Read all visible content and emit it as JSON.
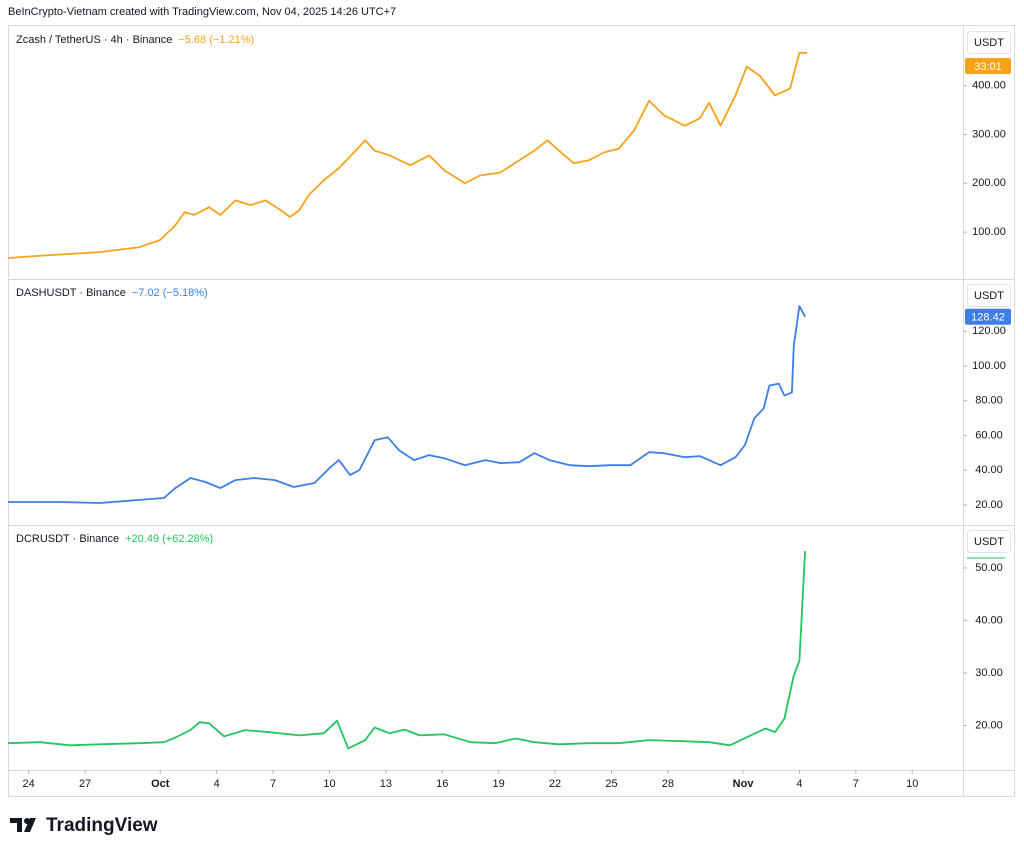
{
  "header": "BeInCrypto-Vietnam created with TradingView.com, Nov 04, 2025 14:26 UTC+7",
  "footer": "TradingView",
  "chart_data": [
    {
      "type": "line",
      "title": "Zcash / TetherUS · 4h · Binance",
      "change": "−5.68 (−1.21%)",
      "color": "#f7a21b",
      "axis_label": "USDT",
      "price_tag": "33:01",
      "x": [
        -1.1,
        1.1,
        3.8,
        5.9,
        7.0,
        7.8,
        8.3,
        8.8,
        9.6,
        10.2,
        11.0,
        11.8,
        12.6,
        13.4,
        13.9,
        14.4,
        14.9,
        15.7,
        16.5,
        17.3,
        17.9,
        18.4,
        19.2,
        20.3,
        21.3,
        22.1,
        23.2,
        24.0,
        25.1,
        26.1,
        26.9,
        27.6,
        28.2,
        29.0,
        29.8,
        30.6,
        31.4,
        32.2,
        33.0,
        33.8,
        34.9,
        35.7,
        36.2,
        36.8,
        37.6,
        38.2,
        38.9,
        39.7,
        40.5,
        41.0,
        41.4
      ],
      "values": [
        47,
        53,
        59,
        69,
        84,
        114,
        141,
        135,
        151,
        135,
        165,
        155,
        165,
        145,
        131,
        145,
        176,
        206,
        231,
        263,
        288,
        267,
        257,
        237,
        257,
        227,
        200,
        216,
        222,
        247,
        267,
        288,
        267,
        241,
        247,
        263,
        271,
        308,
        369,
        339,
        318,
        333,
        365,
        318,
        380,
        439,
        420,
        380,
        394,
        467,
        467
      ],
      "xlim": [
        -1.1,
        49.7
      ],
      "ylim": [
        6,
        518
      ],
      "yticks": [
        {
          "value": 100,
          "label": "100.00"
        },
        {
          "value": 200,
          "label": "200.00"
        },
        {
          "value": 300,
          "label": "300.00"
        },
        {
          "value": 400,
          "label": "400.00"
        }
      ]
    },
    {
      "type": "line",
      "title": "DASHUSDT · Binance",
      "change": "−7.02 (−5.18%)",
      "color": "#3d7ee8",
      "axis_label": "USDT",
      "price_tag": "128.42",
      "x": [
        -1.1,
        1.6,
        3.8,
        5.9,
        7.2,
        7.8,
        8.6,
        9.4,
        10.2,
        11.0,
        12.0,
        13.1,
        14.1,
        15.2,
        16.0,
        16.5,
        17.1,
        17.6,
        18.4,
        19.1,
        19.7,
        20.5,
        21.3,
        22.1,
        23.2,
        24.3,
        25.1,
        26.1,
        26.9,
        27.7,
        28.8,
        29.8,
        30.9,
        32.0,
        33.0,
        33.8,
        34.9,
        35.7,
        36.8,
        37.6,
        38.1,
        38.6,
        39.1,
        39.4,
        39.9,
        40.2,
        40.6,
        40.7,
        41.0,
        41.3
      ],
      "values": [
        21.7,
        21.7,
        21.1,
        22.9,
        24.0,
        29.7,
        35.5,
        33.2,
        29.7,
        34.3,
        35.5,
        34.3,
        30.3,
        32.6,
        41.2,
        45.8,
        37.2,
        40.1,
        57.2,
        59.0,
        51.5,
        45.8,
        48.7,
        46.9,
        42.9,
        45.8,
        44.1,
        44.6,
        49.8,
        45.8,
        42.9,
        42.3,
        42.9,
        42.9,
        50.4,
        49.8,
        47.5,
        48.1,
        42.9,
        47.5,
        54.4,
        69.9,
        75.6,
        88.8,
        89.9,
        83.0,
        84.8,
        111.7,
        134.6,
        128.42
      ],
      "xlim": [
        -1.1,
        49.7
      ],
      "ylim": [
        9,
        149
      ],
      "yticks": [
        {
          "value": 20,
          "label": "20.00"
        },
        {
          "value": 40,
          "label": "40.00"
        },
        {
          "value": 60,
          "label": "60.00"
        },
        {
          "value": 80,
          "label": "80.00"
        },
        {
          "value": 100,
          "label": "100.00"
        },
        {
          "value": 120,
          "label": "120.00"
        }
      ]
    },
    {
      "type": "line",
      "title": "DCRUSDT · Binance",
      "change": "+20.49 (+62.28%)",
      "color": "#22c55e",
      "axis_label": "USDT",
      "x": [
        -1.1,
        0.6,
        2.2,
        3.8,
        5.9,
        7.2,
        7.8,
        8.6,
        9.1,
        9.6,
        10.4,
        11.5,
        12.8,
        14.4,
        15.7,
        16.4,
        17.0,
        17.9,
        18.4,
        19.2,
        20.0,
        20.8,
        22.1,
        23.5,
        24.8,
        25.9,
        26.9,
        28.2,
        29.8,
        31.4,
        33.0,
        34.7,
        36.2,
        37.3,
        38.4,
        39.2,
        39.7,
        40.2,
        40.7,
        41.0,
        41.3
      ],
      "values": [
        16.6,
        16.8,
        16.2,
        16.4,
        16.6,
        16.8,
        17.7,
        19.1,
        20.6,
        20.4,
        17.9,
        19.1,
        18.7,
        18.1,
        18.5,
        20.9,
        15.6,
        17.2,
        19.6,
        18.5,
        19.2,
        18.1,
        18.3,
        16.8,
        16.6,
        17.5,
        16.8,
        16.4,
        16.6,
        16.6,
        17.2,
        17.0,
        16.8,
        16.2,
        18.1,
        19.4,
        18.7,
        21.3,
        29.5,
        32.3,
        53.2
      ],
      "xlim": [
        -1.1,
        49.7
      ],
      "ylim": [
        11.5,
        57.8
      ],
      "yticks": [
        {
          "value": 20,
          "label": "20.00"
        },
        {
          "value": 30,
          "label": "30.00"
        },
        {
          "value": 40,
          "label": "40.00"
        },
        {
          "value": 50,
          "label": "50.00"
        }
      ],
      "xticks": [
        {
          "value": 0,
          "label": "24"
        },
        {
          "value": 3,
          "label": "27"
        },
        {
          "value": 7,
          "label": "Oct"
        },
        {
          "value": 10,
          "label": "4"
        },
        {
          "value": 13,
          "label": "7"
        },
        {
          "value": 16,
          "label": "10"
        },
        {
          "value": 19,
          "label": "13"
        },
        {
          "value": 22,
          "label": "16"
        },
        {
          "value": 25,
          "label": "19"
        },
        {
          "value": 28,
          "label": "22"
        },
        {
          "value": 31,
          "label": "25"
        },
        {
          "value": 34,
          "label": "28"
        },
        {
          "value": 38,
          "label": "Nov"
        },
        {
          "value": 41,
          "label": "4"
        },
        {
          "value": 44,
          "label": "7"
        },
        {
          "value": 47,
          "label": "10"
        }
      ]
    }
  ]
}
